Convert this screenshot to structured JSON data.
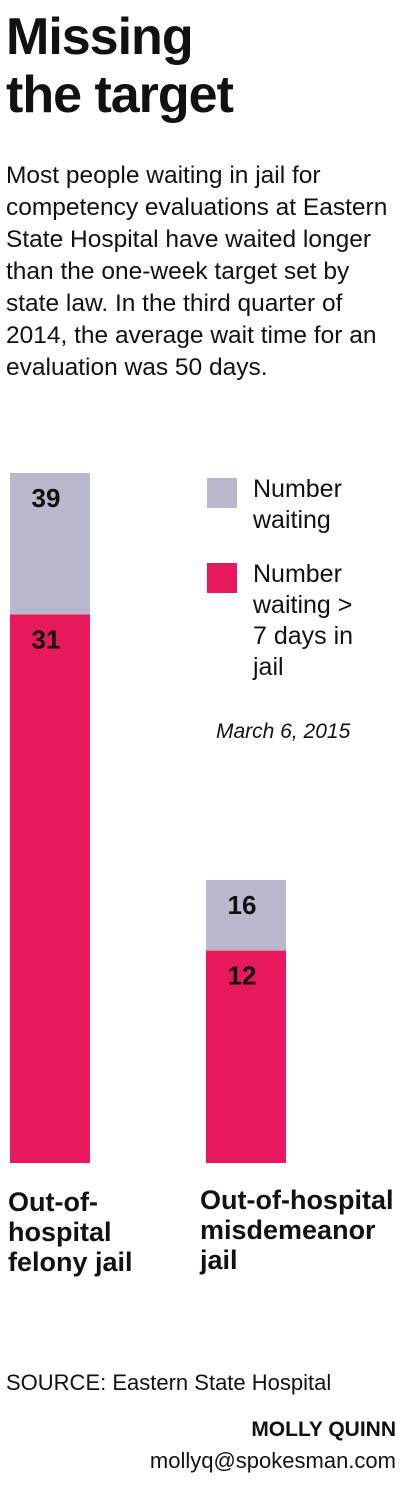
{
  "chart_data": {
    "type": "bar",
    "title": "Missing the target",
    "subtitle": "Most people waiting in jail for competency evaluations at Eastern State Hospital have waited longer than the one-week target set by state law. In the third quarter of 2014, the average wait time for an evaluation was 50 days.",
    "categories": [
      "Out-of-hospital felony jail",
      "Out-of-hospital misdemeanor jail"
    ],
    "series": [
      {
        "name": "Number waiting",
        "color": "#b9b8cc",
        "values": [
          39,
          16
        ]
      },
      {
        "name": "Number waiting > 7 days in jail",
        "color": "#e8185c",
        "values": [
          31,
          12
        ]
      }
    ],
    "overlap": true,
    "date": "March 6, 2015",
    "source": "SOURCE: Eastern State Hospital",
    "credit": "MOLLY QUINN",
    "email": "mollyq@spokesman.com"
  }
}
